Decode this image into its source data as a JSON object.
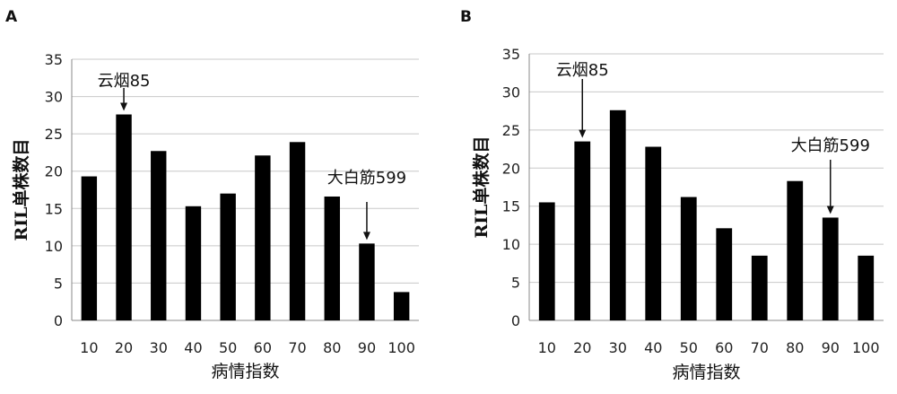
{
  "chart_data": [
    {
      "panel": "A",
      "type": "bar",
      "categories": [
        "10",
        "20",
        "30",
        "40",
        "50",
        "60",
        "70",
        "80",
        "90",
        "100"
      ],
      "values": [
        19.3,
        27.6,
        22.7,
        15.3,
        17.0,
        22.1,
        23.9,
        16.6,
        10.3,
        3.8
      ],
      "ylabel": "RIL单株数目",
      "xlabel": "病情指数",
      "ylim": [
        0,
        35
      ],
      "yticks": [
        0,
        5,
        10,
        15,
        20,
        25,
        30,
        35
      ],
      "grid": true,
      "annotations": [
        {
          "text": "云烟85",
          "category": "20"
        },
        {
          "text": "大白筋599",
          "category": "90"
        }
      ]
    },
    {
      "panel": "B",
      "type": "bar",
      "categories": [
        "10",
        "20",
        "30",
        "40",
        "50",
        "60",
        "70",
        "80",
        "90",
        "100"
      ],
      "values": [
        15.5,
        23.5,
        27.6,
        22.8,
        16.2,
        12.1,
        8.5,
        18.3,
        13.5,
        8.5
      ],
      "ylabel": "RIL单株数目",
      "xlabel": "病情指数",
      "ylim": [
        0,
        35
      ],
      "yticks": [
        0,
        5,
        10,
        15,
        20,
        25,
        30,
        35
      ],
      "grid": true,
      "annotations": [
        {
          "text": "云烟85",
          "category": "20"
        },
        {
          "text": "大白筋599",
          "category": "90"
        }
      ]
    }
  ]
}
